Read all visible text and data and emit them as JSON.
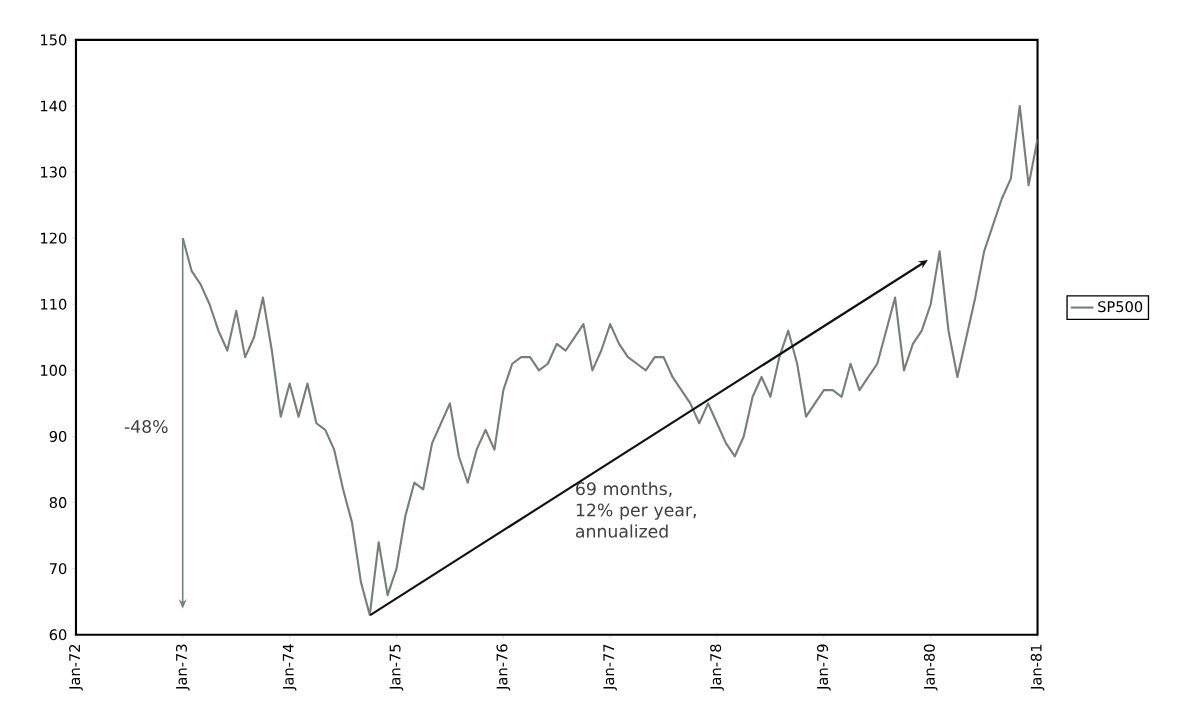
{
  "chart_data": {
    "type": "line",
    "x": [
      "1973-01",
      "1973-02",
      "1973-03",
      "1973-04",
      "1973-05",
      "1973-06",
      "1973-07",
      "1973-08",
      "1973-09",
      "1973-10",
      "1973-11",
      "1973-12",
      "1974-01",
      "1974-02",
      "1974-03",
      "1974-04",
      "1974-05",
      "1974-06",
      "1974-07",
      "1974-08",
      "1974-09",
      "1974-10",
      "1974-11",
      "1974-12",
      "1975-01",
      "1975-02",
      "1975-03",
      "1975-04",
      "1975-05",
      "1975-06",
      "1975-07",
      "1975-08",
      "1975-09",
      "1975-10",
      "1975-11",
      "1975-12",
      "1976-01",
      "1976-02",
      "1976-03",
      "1976-04",
      "1976-05",
      "1976-06",
      "1976-07",
      "1976-08",
      "1976-09",
      "1976-10",
      "1976-11",
      "1976-12",
      "1977-01",
      "1977-02",
      "1977-03",
      "1977-04",
      "1977-05",
      "1977-06",
      "1977-07",
      "1977-08",
      "1977-09",
      "1977-10",
      "1977-11",
      "1977-12",
      "1978-01",
      "1978-02",
      "1978-03",
      "1978-04",
      "1978-05",
      "1978-06",
      "1978-07",
      "1978-08",
      "1978-09",
      "1978-10",
      "1978-11",
      "1978-12",
      "1979-01",
      "1979-02",
      "1979-03",
      "1979-04",
      "1979-05",
      "1979-06",
      "1979-07",
      "1979-08",
      "1979-09",
      "1979-10",
      "1979-11",
      "1979-12",
      "1980-01",
      "1980-02",
      "1980-03",
      "1980-04",
      "1980-05",
      "1980-06",
      "1980-07",
      "1980-08",
      "1980-09",
      "1980-10",
      "1980-11",
      "1980-12",
      "1981-01"
    ],
    "series": [
      {
        "name": "SP500",
        "color": "#76807a",
        "values": [
          120,
          115,
          113,
          110,
          106,
          103,
          109,
          102,
          105,
          111,
          103,
          93,
          98,
          93,
          98,
          92,
          91,
          88,
          82,
          77,
          68,
          63,
          74,
          66,
          70,
          78,
          83,
          82,
          89,
          92,
          95,
          87,
          83,
          88,
          91,
          88,
          97,
          101,
          102,
          102,
          100,
          101,
          104,
          103,
          105,
          107,
          100,
          103,
          107,
          104,
          102,
          101,
          100,
          102,
          102,
          99,
          97,
          95,
          92,
          95,
          92,
          89,
          87,
          90,
          96,
          99,
          96,
          102,
          106,
          101,
          93,
          95,
          97,
          97,
          96,
          101,
          97,
          99,
          101,
          106,
          111,
          100,
          104,
          106,
          110,
          118,
          106,
          99,
          105,
          111,
          118,
          122,
          126,
          129,
          140,
          128,
          135
        ]
      }
    ],
    "xlim": [
      "1972-01",
      "1981-01"
    ],
    "xticks": [
      {
        "value": "1972-01",
        "label": "Jan-72"
      },
      {
        "value": "1973-01",
        "label": "Jan-73"
      },
      {
        "value": "1974-01",
        "label": "Jan-74"
      },
      {
        "value": "1975-01",
        "label": "Jan-75"
      },
      {
        "value": "1976-01",
        "label": "Jan-76"
      },
      {
        "value": "1977-01",
        "label": "Jan-77"
      },
      {
        "value": "1978-01",
        "label": "Jan-78"
      },
      {
        "value": "1979-01",
        "label": "Jan-79"
      },
      {
        "value": "1980-01",
        "label": "Jan-80"
      },
      {
        "value": "1981-01",
        "label": "Jan-81"
      }
    ],
    "ylim": [
      60,
      150
    ],
    "yticks": [
      60,
      70,
      80,
      90,
      100,
      110,
      120,
      130,
      140,
      150
    ],
    "annotations": [
      "-48%",
      "69 months, 12% per year, annualized"
    ],
    "legend": "right",
    "grid": false
  }
}
